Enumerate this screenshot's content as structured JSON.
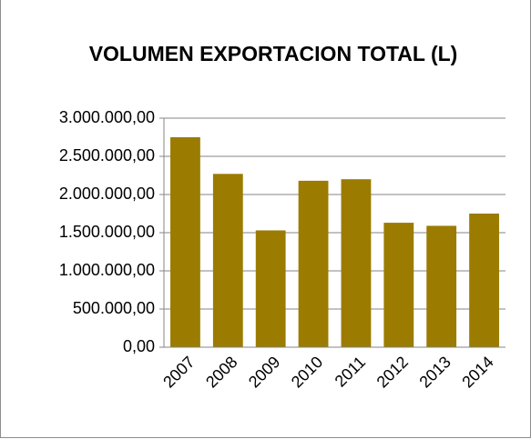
{
  "chart_data": {
    "type": "bar",
    "title": "VOLUMEN EXPORTACION TOTAL (L)",
    "categories": [
      "2007",
      "2008",
      "2009",
      "2010",
      "2011",
      "2012",
      "2013",
      "2014"
    ],
    "values": [
      2750000,
      2270000,
      1530000,
      2180000,
      2200000,
      1630000,
      1590000,
      1750000
    ],
    "color": "#9b7b00",
    "ylim": [
      0,
      3000000
    ],
    "yticks": [
      {
        "value": 0,
        "label": "0,00"
      },
      {
        "value": 500000,
        "label": "500.000,00"
      },
      {
        "value": 1000000,
        "label": "1.000.000,00"
      },
      {
        "value": 1500000,
        "label": "1.500.000,00"
      },
      {
        "value": 2000000,
        "label": "2.000.000,00"
      },
      {
        "value": 2500000,
        "label": "2.500.000,00"
      },
      {
        "value": 3000000,
        "label": "3.000.000,00"
      }
    ],
    "grid": true
  }
}
